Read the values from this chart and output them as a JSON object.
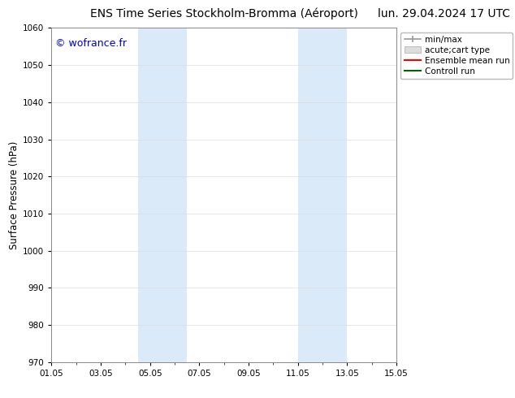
{
  "title_left": "ENS Time Series Stockholm-Bromma (Aéroport)",
  "title_right": "lun. 29.04.2024 17 UTC",
  "ylabel": "Surface Pressure (hPa)",
  "ylim": [
    970,
    1060
  ],
  "yticks": [
    970,
    980,
    990,
    1000,
    1010,
    1020,
    1030,
    1040,
    1050,
    1060
  ],
  "xtick_labels": [
    "01.05",
    "03.05",
    "05.05",
    "07.05",
    "09.05",
    "11.05",
    "13.05",
    "15.05"
  ],
  "xtick_positions": [
    0,
    2,
    4,
    6,
    8,
    10,
    12,
    14
  ],
  "xlim": [
    0,
    14
  ],
  "shaded_regions": [
    {
      "x_start": 3.5,
      "x_end": 5.5
    },
    {
      "x_start": 10.0,
      "x_end": 12.0
    }
  ],
  "shade_color": "#daeaf8",
  "watermark_text": "© wofrance.fr",
  "watermark_color": "#0000cc",
  "legend_entries": [
    {
      "label": "min/max",
      "color": "#aaaaaa",
      "lw": 1.5
    },
    {
      "label": "acute;cart type",
      "color": "#cccccc",
      "lw": 8
    },
    {
      "label": "Ensemble mean run",
      "color": "#ff0000",
      "lw": 1.5
    },
    {
      "label": "Controll run",
      "color": "#006400",
      "lw": 1.5
    }
  ],
  "background_color": "#ffffff",
  "grid_color": "#dddddd",
  "title_fontsize": 10,
  "tick_fontsize": 7.5,
  "ylabel_fontsize": 8.5,
  "watermark_fontsize": 9,
  "legend_fontsize": 7.5
}
